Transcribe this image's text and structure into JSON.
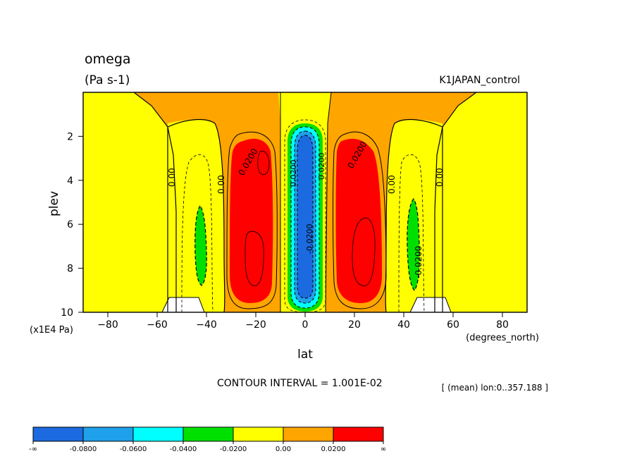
{
  "chart_data": {
    "type": "heatmap",
    "title": "omega",
    "units": "(Pa s-1)",
    "dataset": "K1JAPAN_control",
    "xlabel": "lat",
    "ylabel": "plev",
    "x_units": "(degrees_north)",
    "y_units": "(x1E4 Pa)",
    "xlim": [
      -90,
      90
    ],
    "ylim": [
      0.0,
      10
    ],
    "x_ticks": [
      "-80",
      "-60",
      "-40",
      "-20",
      "0",
      "20",
      "40",
      "60",
      "80"
    ],
    "y_ticks": [
      "2",
      "4",
      "6",
      "8",
      "10"
    ],
    "contour_interval_text": "CONTOUR INTERVAL = 1.001E-02",
    "subset_text": "[ (mean) lon:0..357.188 ]",
    "contour_labels": [
      "0.00",
      "0.00",
      "0.0200",
      "0.0200",
      "0.0200",
      "0.00",
      "0.00",
      "-0.0200",
      "0.0200",
      "-0.0200"
    ],
    "colorbar": {
      "colors": [
        "#1c6ae0",
        "#1fa0ea",
        "#00ffff",
        "#00e000",
        "#ffff00",
        "#ffa500",
        "#ff0000"
      ],
      "labels": [
        "-∞",
        "-0.0800",
        "-0.0600",
        "-0.0400",
        "-0.0200",
        "0.00",
        "0.0200",
        "∞"
      ]
    },
    "grid": false
  }
}
